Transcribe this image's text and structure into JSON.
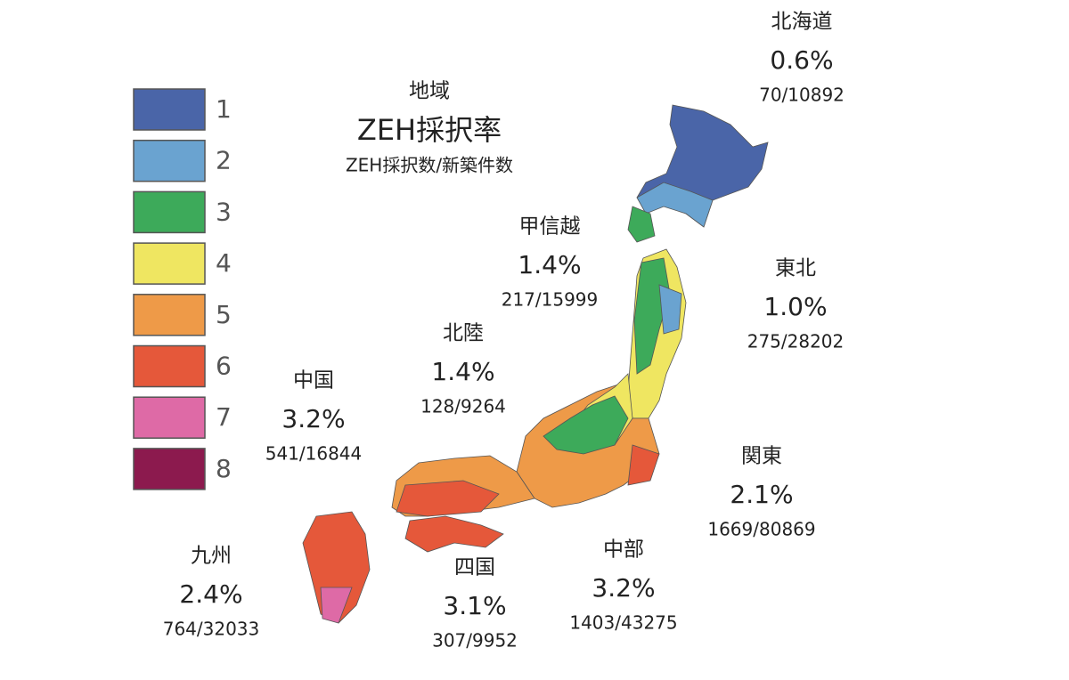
{
  "legend": [
    {
      "label": "1",
      "color": "#4a65a8"
    },
    {
      "label": "2",
      "color": "#6aa3d0"
    },
    {
      "label": "3",
      "color": "#3daa5a"
    },
    {
      "label": "4",
      "color": "#efe661"
    },
    {
      "label": "5",
      "color": "#ee9a48"
    },
    {
      "label": "6",
      "color": "#e5583a"
    },
    {
      "label": "7",
      "color": "#de6aa6"
    },
    {
      "label": "8",
      "color": "#8c1a4e"
    }
  ],
  "key": {
    "line1": "地域",
    "line2": "ZEH採択率",
    "line3": "ZEH採択数/新築件数"
  },
  "regions": [
    {
      "name": "北海道",
      "rate": "0.6%",
      "count": "70/10892"
    },
    {
      "name": "東北",
      "rate": "1.0%",
      "count": "275/28202"
    },
    {
      "name": "関東",
      "rate": "2.1%",
      "count": "1669/80869"
    },
    {
      "name": "中部",
      "rate": "3.2%",
      "count": "1403/43275"
    },
    {
      "name": "四国",
      "rate": "3.1%",
      "count": "307/9952"
    },
    {
      "name": "九州",
      "rate": "2.4%",
      "count": "764/32033"
    },
    {
      "name": "中国",
      "rate": "3.2%",
      "count": "541/16844"
    },
    {
      "name": "北陸",
      "rate": "1.4%",
      "count": "128/9264"
    },
    {
      "name": "甲信越",
      "rate": "1.4%",
      "count": "217/15999"
    }
  ]
}
